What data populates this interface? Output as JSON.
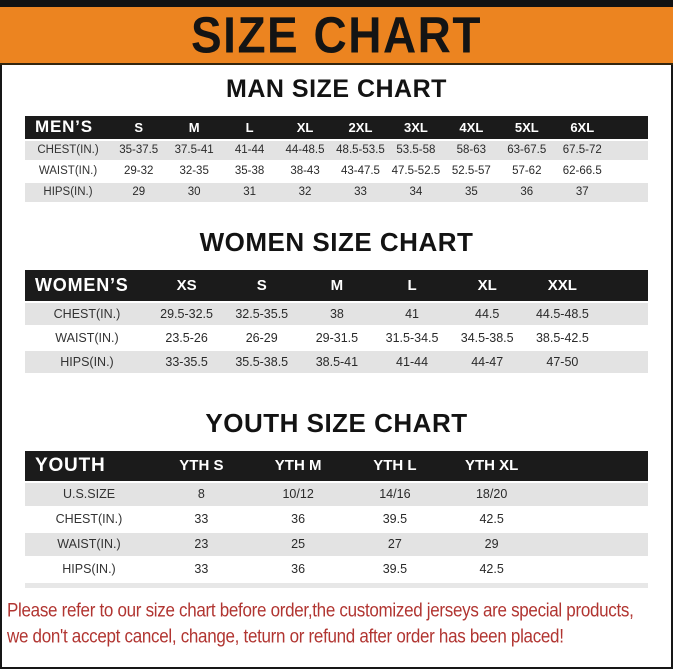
{
  "title": "SIZE CHART",
  "sections": [
    {
      "heading": "MAN SIZE CHART",
      "header_label": "MEN’S",
      "columns": [
        "S",
        "M",
        "L",
        "XL",
        "2XL",
        "3XL",
        "4XL",
        "5XL",
        "6XL"
      ],
      "rows": [
        {
          "label": "CHEST(IN.)",
          "values": [
            "35-37.5",
            "37.5-41",
            "41-44",
            "44-48.5",
            "48.5-53.5",
            "53.5-58",
            "58-63",
            "63-67.5",
            "67.5-72"
          ]
        },
        {
          "label": "WAIST(IN.)",
          "values": [
            "29-32",
            "32-35",
            "35-38",
            "38-43",
            "43-47.5",
            "47.5-52.5",
            "52.5-57",
            "57-62",
            "62-66.5"
          ]
        },
        {
          "label": "HIPS(IN.)",
          "values": [
            "29",
            "30",
            "31",
            "32",
            "33",
            "34",
            "35",
            "36",
            "37"
          ]
        }
      ]
    },
    {
      "heading": "WOMEN SIZE CHART",
      "header_label": "WOMEN’S",
      "columns": [
        "XS",
        "S",
        "M",
        "L",
        "XL",
        "XXL"
      ],
      "rows": [
        {
          "label": "CHEST(IN.)",
          "values": [
            "29.5-32.5",
            "32.5-35.5",
            "38",
            "41",
            "44.5",
            "44.5-48.5"
          ]
        },
        {
          "label": "WAIST(IN.)",
          "values": [
            "23.5-26",
            "26-29",
            "29-31.5",
            "31.5-34.5",
            "34.5-38.5",
            "38.5-42.5"
          ]
        },
        {
          "label": "HIPS(IN.)",
          "values": [
            "33-35.5",
            "35.5-38.5",
            "38.5-41",
            "41-44",
            "44-47",
            "47-50"
          ]
        }
      ]
    },
    {
      "heading": "YOUTH SIZE CHART",
      "header_label": "YOUTH",
      "columns": [
        "YTH S",
        "YTH M",
        "YTH L",
        "YTH XL"
      ],
      "rows": [
        {
          "label": "U.S.SIZE",
          "values": [
            "8",
            "10/12",
            "14/16",
            "18/20"
          ]
        },
        {
          "label": "CHEST(IN.)",
          "values": [
            "33",
            "36",
            "39.5",
            "42.5"
          ]
        },
        {
          "label": "WAIST(IN.)",
          "values": [
            "23",
            "25",
            "27",
            "29"
          ]
        },
        {
          "label": "HIPS(IN.)",
          "values": [
            "33",
            "36",
            "39.5",
            "42.5"
          ]
        }
      ]
    }
  ],
  "footer": {
    "line1": "Please refer to our size chart before order,the customized jerseys are special products,",
    "line2": "we don't accept cancel, change, teturn or refund after order has been placed!"
  },
  "colors": {
    "banner_orange": "#ec8420",
    "top_strip_black": "#121212",
    "header_bar_black": "#1b1b1b",
    "row_shade_gray": "#e3e3e3",
    "notice_red": "#b13531"
  }
}
